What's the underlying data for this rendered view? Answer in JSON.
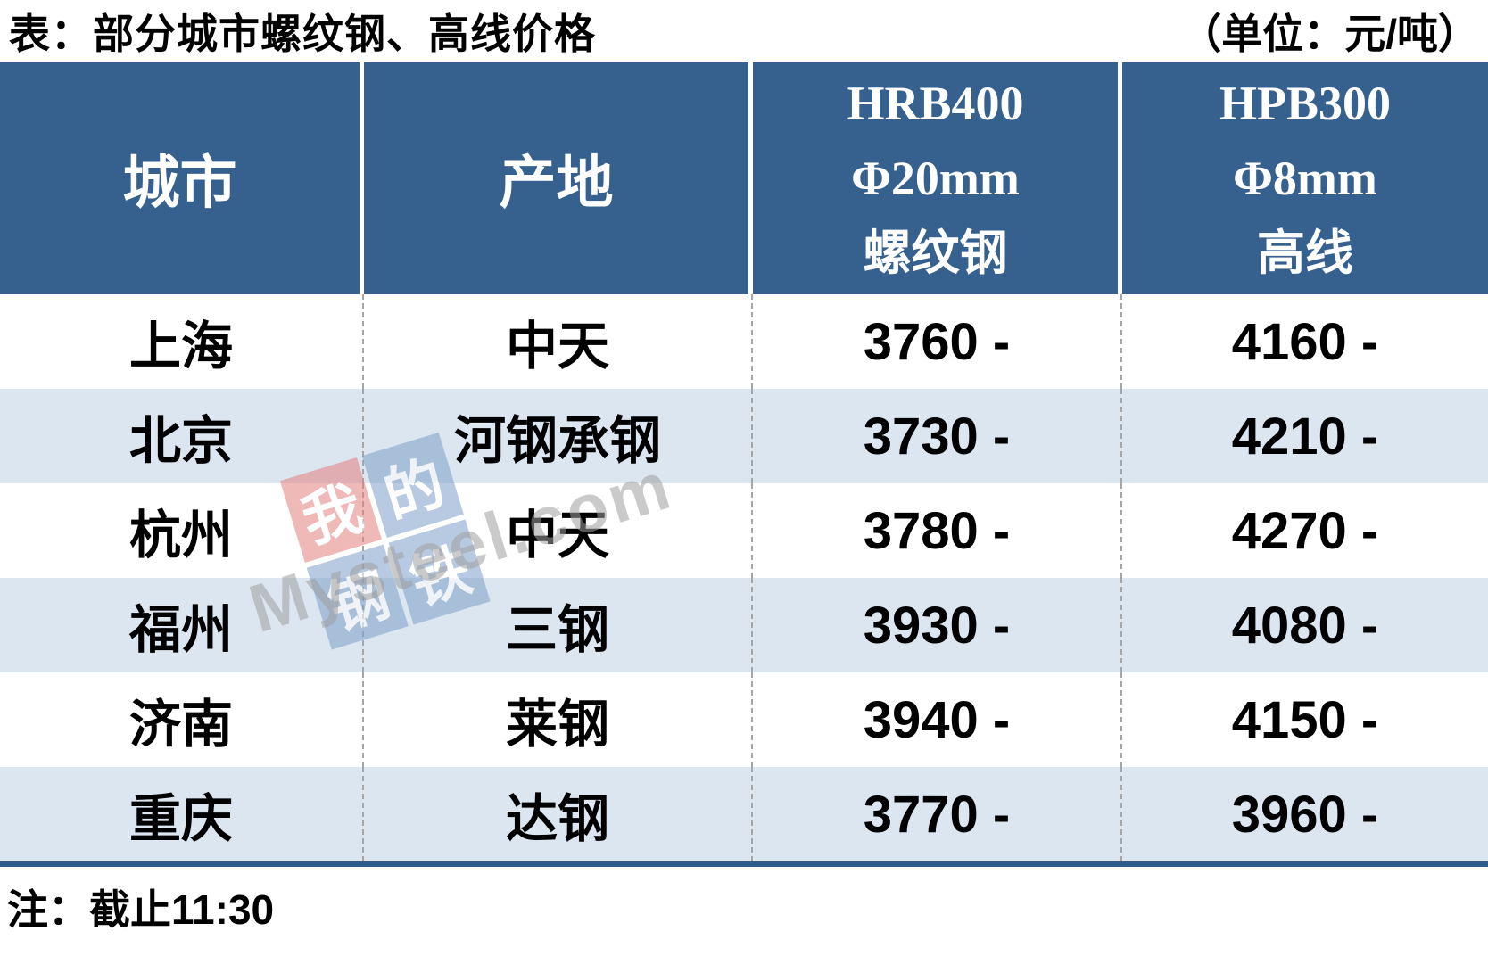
{
  "page": {
    "title": "表：部分城市螺纹钢、高线价格",
    "unit_label": "（单位：元/吨）",
    "note": "注：截止11:30"
  },
  "table": {
    "headers": {
      "city": "城市",
      "origin": "产地",
      "col3": [
        "HRB400",
        "Φ20mm",
        "螺纹钢"
      ],
      "col4": [
        "HPB300",
        "Φ8mm",
        "高线"
      ]
    },
    "rows": [
      {
        "city": "上海",
        "origin": "中天",
        "hrb400": "3760 -",
        "hpb300": "4160 -"
      },
      {
        "city": "北京",
        "origin": "河钢承钢",
        "hrb400": "3730 -",
        "hpb300": "4210 -"
      },
      {
        "city": "杭州",
        "origin": "中天",
        "hrb400": "3780 -",
        "hpb300": "4270 -"
      },
      {
        "city": "福州",
        "origin": "三钢",
        "hrb400": "3930 -",
        "hpb300": "4080 -"
      },
      {
        "city": "济南",
        "origin": "莱钢",
        "hrb400": "3940 -",
        "hpb300": "4150 -"
      },
      {
        "city": "重庆",
        "origin": "达钢",
        "hrb400": "3770 -",
        "hpb300": "3960 -"
      }
    ]
  },
  "watermark": {
    "tiles": [
      "我",
      "的",
      "钢",
      "铁"
    ],
    "brand": "Mysteel.com"
  },
  "colors": {
    "header_bg": "#36618E",
    "row_stripe": "#DCE6F1",
    "table_bottom_border": "#2E5B87",
    "dashed_divider": "#A6A6A6",
    "logo_red": "#E2807F",
    "logo_blue": "#7FA0C9",
    "brand_gray": "#A0A0A0"
  },
  "chart_data": {
    "type": "table",
    "title": "表：部分城市螺纹钢、高线价格",
    "unit": "元/吨",
    "columns": [
      "城市",
      "产地",
      "HRB400 Φ20mm 螺纹钢",
      "HPB300 Φ8mm 高线"
    ],
    "rows": [
      [
        "上海",
        "中天",
        "3760 -",
        "4160 -"
      ],
      [
        "北京",
        "河钢承钢",
        "3730 -",
        "4210 -"
      ],
      [
        "杭州",
        "中天",
        "3780 -",
        "4270 -"
      ],
      [
        "福州",
        "三钢",
        "3930 -",
        "4080 -"
      ],
      [
        "济南",
        "莱钢",
        "3940 -",
        "4150 -"
      ],
      [
        "重庆",
        "达钢",
        "3770 -",
        "3960 -"
      ]
    ],
    "note": "注：截止11:30"
  }
}
